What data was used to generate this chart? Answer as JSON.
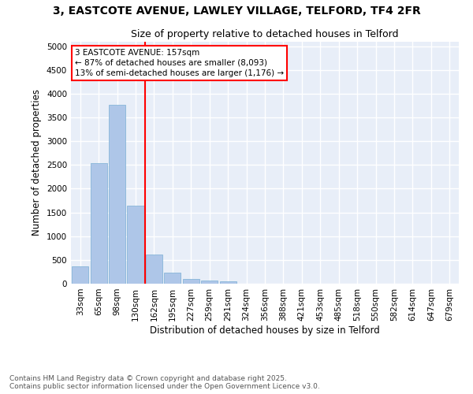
{
  "title1": "3, EASTCOTE AVENUE, LAWLEY VILLAGE, TELFORD, TF4 2FR",
  "title2": "Size of property relative to detached houses in Telford",
  "xlabel": "Distribution of detached houses by size in Telford",
  "ylabel": "Number of detached properties",
  "categories": [
    "33sqm",
    "65sqm",
    "98sqm",
    "130sqm",
    "162sqm",
    "195sqm",
    "227sqm",
    "259sqm",
    "291sqm",
    "324sqm",
    "356sqm",
    "388sqm",
    "421sqm",
    "453sqm",
    "485sqm",
    "518sqm",
    "550sqm",
    "582sqm",
    "614sqm",
    "647sqm",
    "679sqm"
  ],
  "values": [
    370,
    2540,
    3760,
    1650,
    610,
    240,
    100,
    60,
    50,
    0,
    0,
    0,
    0,
    0,
    0,
    0,
    0,
    0,
    0,
    0,
    0
  ],
  "bar_color": "#aec6e8",
  "bar_edge_color": "#7aafd4",
  "vline_color": "red",
  "annotation_text": "3 EASTCOTE AVENUE: 157sqm\n← 87% of detached houses are smaller (8,093)\n13% of semi-detached houses are larger (1,176) →",
  "annotation_box_color": "white",
  "annotation_box_edge_color": "red",
  "ylim": [
    0,
    5100
  ],
  "yticks": [
    0,
    500,
    1000,
    1500,
    2000,
    2500,
    3000,
    3500,
    4000,
    4500,
    5000
  ],
  "background_color": "#e8eef8",
  "grid_color": "white",
  "footer_text": "Contains HM Land Registry data © Crown copyright and database right 2025.\nContains public sector information licensed under the Open Government Licence v3.0.",
  "title_fontsize": 10,
  "subtitle_fontsize": 9,
  "axis_label_fontsize": 8.5,
  "tick_fontsize": 7.5,
  "footer_fontsize": 6.5
}
